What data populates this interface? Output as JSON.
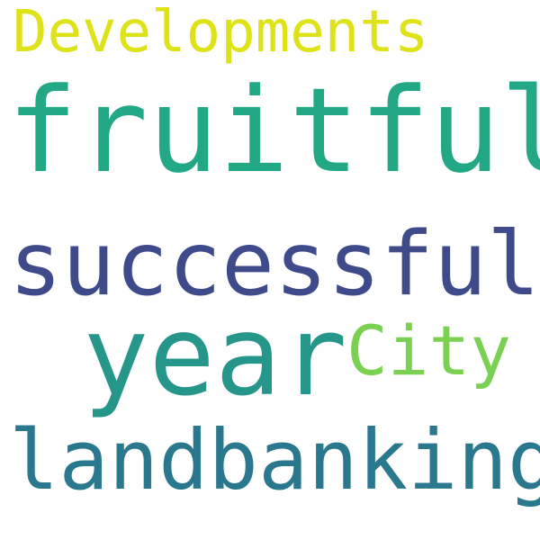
{
  "words": [
    {
      "text": "Developments",
      "color": "#dde318"
    },
    {
      "text": "fruitful",
      "color": "#22a884"
    },
    {
      "text": "successful",
      "color": "#3e4a89"
    },
    {
      "text": "year",
      "color": "#26968b"
    },
    {
      "text": "City",
      "color": "#7ad151"
    },
    {
      "text": "landbanking",
      "color": "#2a788e"
    }
  ]
}
